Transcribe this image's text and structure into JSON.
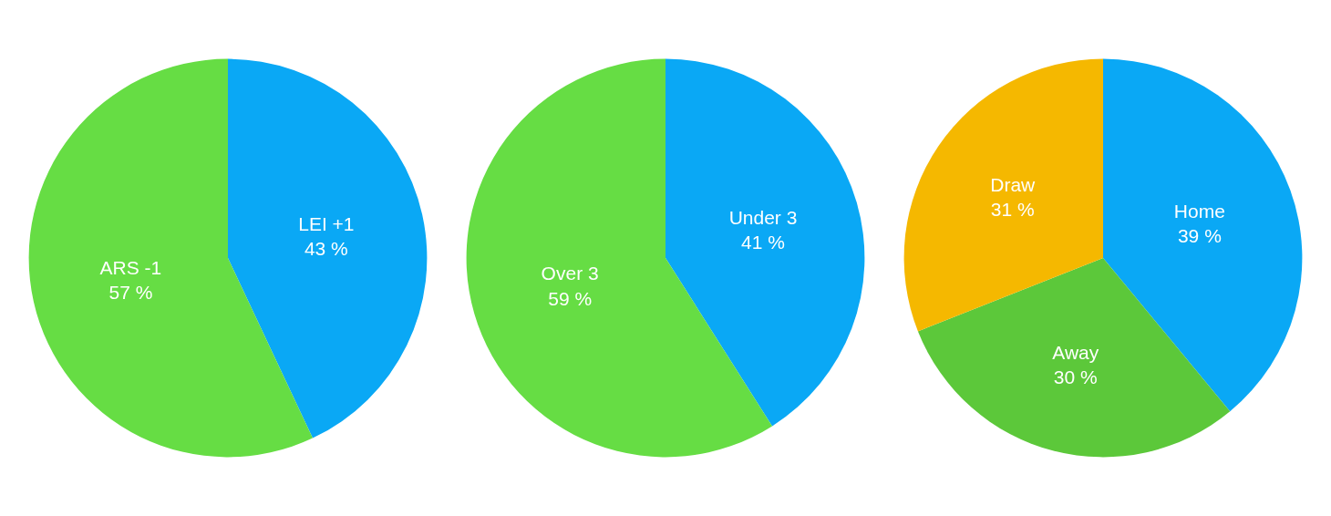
{
  "chart_data": [
    {
      "type": "pie",
      "categories": [
        "LEI +1",
        "ARS -1"
      ],
      "values": [
        43,
        57
      ],
      "value_labels": [
        "43 %",
        "57 %"
      ],
      "colors": [
        "#0aa8f5",
        "#66dd44"
      ],
      "legend": false
    },
    {
      "type": "pie",
      "categories": [
        "Under 3",
        "Over 3"
      ],
      "values": [
        41,
        59
      ],
      "value_labels": [
        "41 %",
        "59 %"
      ],
      "colors": [
        "#0aa8f5",
        "#66dd44"
      ],
      "legend": false
    },
    {
      "type": "pie",
      "categories": [
        "Home",
        "Away",
        "Draw"
      ],
      "values": [
        39,
        30,
        31
      ],
      "value_labels": [
        "39 %",
        "30 %",
        "31 %"
      ],
      "colors": [
        "#0aa8f5",
        "#5cc83a",
        "#f5b800"
      ],
      "legend": false
    }
  ]
}
